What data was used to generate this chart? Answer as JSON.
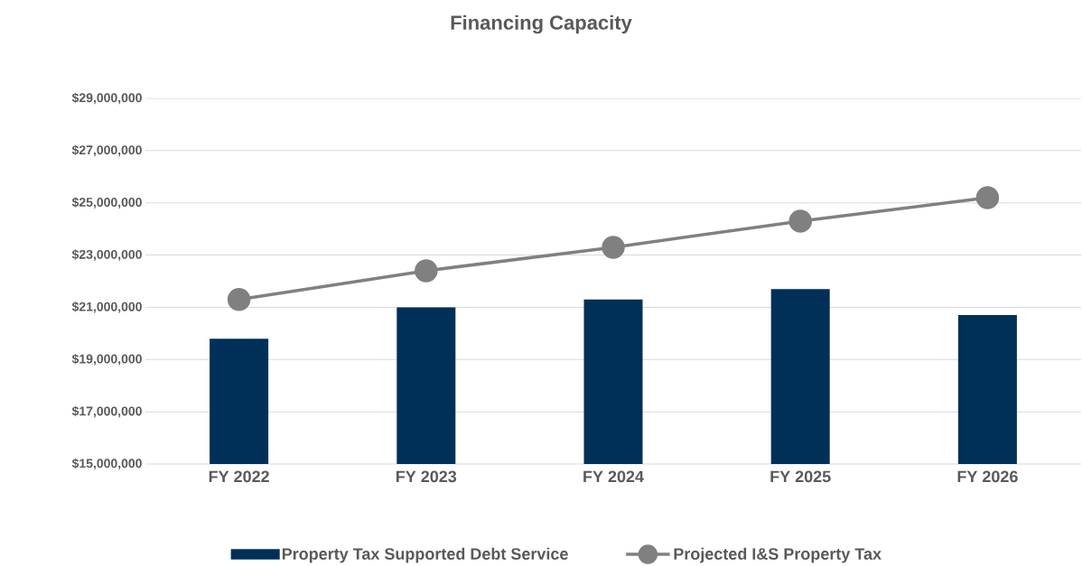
{
  "chart_data": {
    "type": "bar",
    "title": "Financing Capacity",
    "categories": [
      "FY 2022",
      "FY 2023",
      "FY 2024",
      "FY 2025",
      "FY 2026"
    ],
    "series": [
      {
        "name": "Property Tax Supported Debt Service",
        "color": "#003057",
        "values": [
          19800000,
          21000000,
          21300000,
          21700000,
          20700000
        ]
      },
      {
        "name": "Projected I&S Property Tax",
        "type": "line",
        "color": "#808080",
        "marker": "circle",
        "values": [
          21300000,
          22400000,
          23300000,
          24300000,
          25200000
        ]
      }
    ],
    "ylim": [
      15000000,
      29000000
    ],
    "yticks": [
      {
        "value": 15000000,
        "label": "$15,000,000"
      },
      {
        "value": 17000000,
        "label": "$17,000,000"
      },
      {
        "value": 19000000,
        "label": "$19,000,000"
      },
      {
        "value": 21000000,
        "label": "$21,000,000"
      },
      {
        "value": 23000000,
        "label": "$23,000,000"
      },
      {
        "value": 25000000,
        "label": "$25,000,000"
      },
      {
        "value": 27000000,
        "label": "$27,000,000"
      },
      {
        "value": 29000000,
        "label": "$29,000,000"
      }
    ],
    "grid": "y",
    "legend": "bottom"
  }
}
